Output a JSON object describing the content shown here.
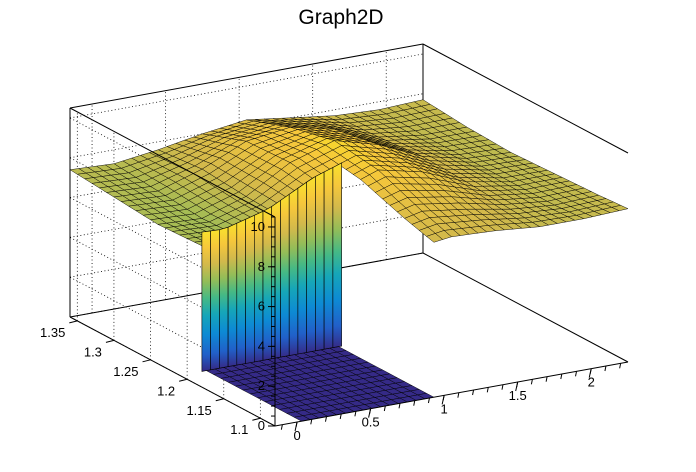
{
  "chart_data": {
    "type": "surface",
    "title": "Graph2D",
    "xlabel": "",
    "ylabel": "",
    "zlabel": "",
    "x_axis": {
      "range": [
        -0.15,
        2.25
      ],
      "major_ticks": [
        0,
        0.5,
        1,
        1.5,
        2
      ],
      "tick_labels": [
        "0",
        "0.5",
        "1",
        "1.5",
        "2"
      ]
    },
    "y_axis": {
      "range": [
        1.08,
        1.36
      ],
      "major_ticks": [
        1.1,
        1.15,
        1.2,
        1.25,
        1.3,
        1.35
      ],
      "tick_labels": [
        "1.1",
        "1.15",
        "1.2",
        "1.25",
        "1.3",
        "1.35"
      ]
    },
    "z_axis": {
      "range": [
        0,
        10.5
      ],
      "major_ticks": [
        0,
        2,
        4,
        6,
        8,
        10
      ],
      "tick_labels": [
        "0",
        "2",
        "4",
        "6",
        "8",
        "10"
      ]
    },
    "grid": true,
    "palette": [
      "#352a87",
      "#2160c9",
      "#0d8ad4",
      "#16a6b8",
      "#45b985",
      "#93bd58",
      "#d3b94b",
      "#f6c73b",
      "#f9fb0e"
    ],
    "surface_rows": [
      {
        "y": 1.36,
        "x": [
          -0.15,
          0.15,
          0.45,
          0.75,
          1.05,
          1.35,
          1.65,
          1.95,
          2.25
        ],
        "z": [
          7.4,
          7.3,
          7.6,
          8.0,
          8.3,
          8.0,
          7.7,
          7.6,
          7.7
        ]
      },
      {
        "y": 1.3,
        "x": [
          -0.15,
          0.15,
          0.45,
          0.75,
          1.05,
          1.35,
          1.65,
          1.95,
          2.25
        ],
        "z": [
          7.2,
          7.1,
          7.8,
          8.8,
          9.1,
          8.6,
          7.8,
          7.5,
          7.5
        ]
      },
      {
        "y": 1.24,
        "x": [
          -0.15,
          0.15,
          0.45,
          0.75,
          1.05,
          1.35,
          1.65,
          1.95,
          2.25
        ],
        "z": [
          7.0,
          6.9,
          7.6,
          8.9,
          9.6,
          9.0,
          8.0,
          7.5,
          7.4
        ]
      },
      {
        "y": 1.18,
        "x": [
          -0.15,
          0.15,
          0.45,
          0.75,
          1.05,
          1.35,
          1.65,
          1.95,
          2.25
        ],
        "z": [
          7.1,
          7.0,
          7.5,
          8.5,
          9.3,
          8.8,
          7.9,
          7.5,
          7.5
        ]
      },
      {
        "y": 1.12,
        "x": [
          -0.15,
          0.15,
          0.45,
          0.75,
          1.05,
          1.35,
          1.65,
          1.95,
          2.25
        ],
        "z": [
          7.2,
          7.1,
          7.4,
          7.9,
          8.4,
          8.1,
          7.7,
          7.5,
          7.6
        ]
      },
      {
        "y": 1.08,
        "x": [
          -0.15,
          0.15,
          0.45,
          0.75,
          1.05,
          1.35,
          1.65,
          1.95,
          2.25
        ],
        "z": [
          7.3,
          7.2,
          7.3,
          7.6,
          7.9,
          7.8,
          7.6,
          7.6,
          7.7
        ]
      }
    ],
    "empty_region": {
      "x": [
        0.0,
        0.95
      ],
      "y": [
        1.08,
        1.21
      ],
      "z_floor": 0
    }
  }
}
